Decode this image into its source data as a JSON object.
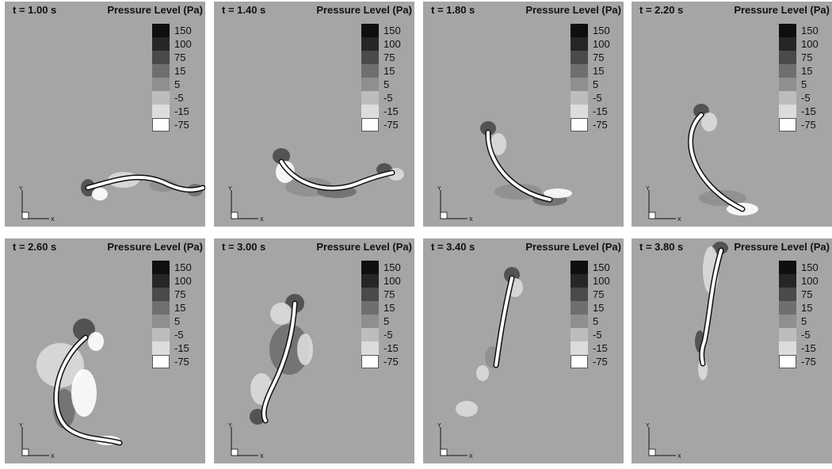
{
  "legend_title": "Pressure Level (Pa)",
  "legend_levels": [
    {
      "label": "150",
      "color": "#0f0f0f"
    },
    {
      "label": "100",
      "color": "#262626"
    },
    {
      "label": "75",
      "color": "#4a4a4a"
    },
    {
      "label": "15",
      "color": "#6f6f6f"
    },
    {
      "label": "5",
      "color": "#8f8f8f"
    },
    {
      "label": "-5",
      "color": "#bdbdbd"
    },
    {
      "label": "-15",
      "color": "#dcdcdc"
    },
    {
      "label": "-75",
      "color": "#ffffff"
    }
  ],
  "axis_labels": {
    "x": "X",
    "y": "Y"
  },
  "colors": {
    "background": "#a5a5a5",
    "filament": "#ffffff",
    "high_pressure": "#4a4a4a",
    "low_pressure": "#e8e8e8"
  },
  "panels": [
    {
      "time": "t = 1.00 s"
    },
    {
      "time": "t = 1.40 s"
    },
    {
      "time": "t = 1.80 s"
    },
    {
      "time": "t = 2.20 s"
    },
    {
      "time": "t = 2.60 s"
    },
    {
      "time": "t = 3.00 s"
    },
    {
      "time": "t = 3.40 s"
    },
    {
      "time": "t = 3.80 s"
    }
  ]
}
